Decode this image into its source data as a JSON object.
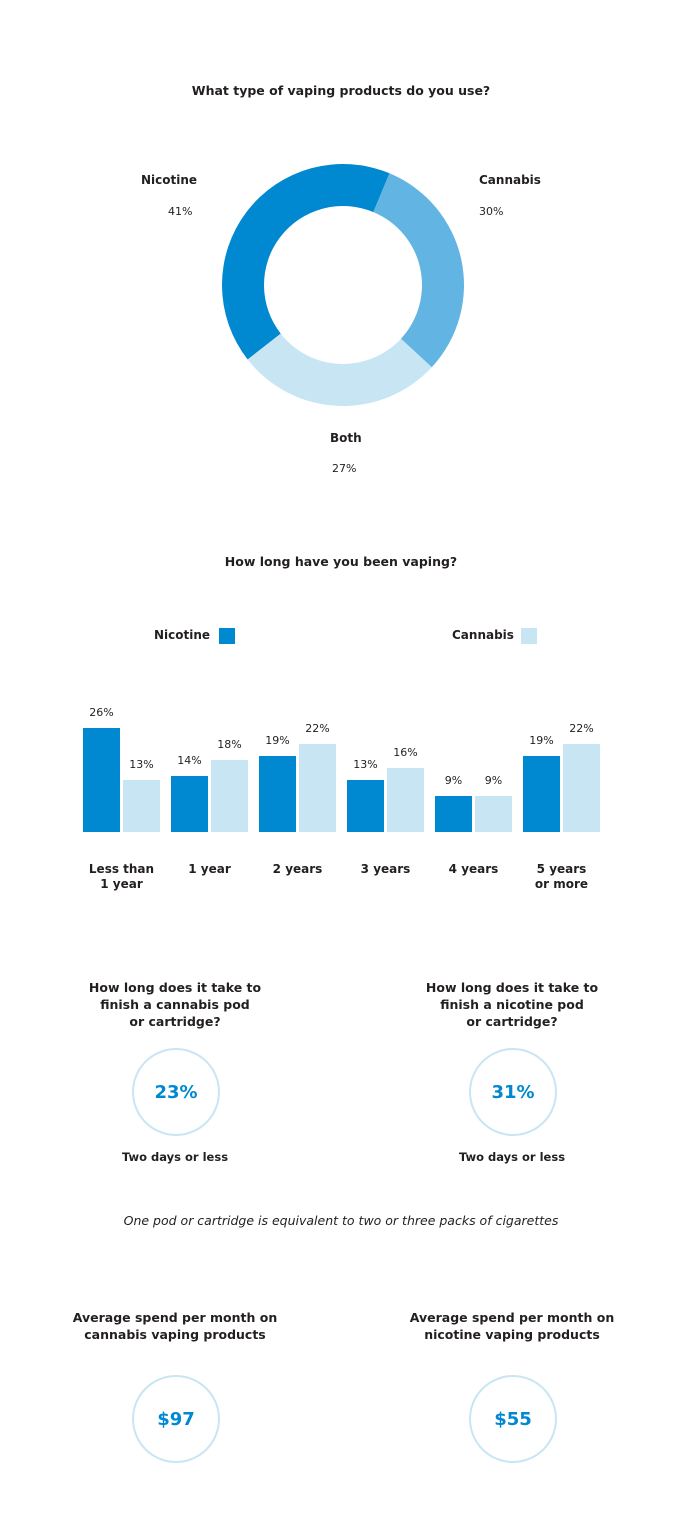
{
  "colors": {
    "nicotine": "#0088d1",
    "cannabis": "#62b5e2",
    "both": "#c8e5f4",
    "cannabis_bar": "#c8e5f4",
    "ring": "#c8e5f4",
    "text": "#231f20"
  },
  "chart_data": [
    {
      "type": "pie",
      "style": "donut",
      "title": "What type of vaping products do you use?",
      "slices": [
        {
          "label": "Nicotine",
          "value": 41,
          "display": "41%"
        },
        {
          "label": "Cannabis",
          "value": 30,
          "display": "30%"
        },
        {
          "label": "Both",
          "value": 27,
          "display": "27%"
        }
      ]
    },
    {
      "type": "bar",
      "title": "How long have you been vaping?",
      "categories": [
        "Less than 1 year",
        "1 year",
        "2 years",
        "3 years",
        "4 years",
        "5 years or more"
      ],
      "category_lines": [
        [
          "Less than",
          "1 year"
        ],
        [
          "1 year"
        ],
        [
          "2 years"
        ],
        [
          "3 years"
        ],
        [
          "4 years"
        ],
        [
          "5 years",
          "or more"
        ]
      ],
      "series": [
        {
          "name": "Nicotine",
          "values": [
            26,
            14,
            19,
            13,
            9,
            19
          ]
        },
        {
          "name": "Cannabis",
          "values": [
            13,
            18,
            22,
            16,
            9,
            22
          ]
        }
      ],
      "value_suffix": "%",
      "legend": "top",
      "grid": false,
      "ylim": [
        0,
        26
      ]
    }
  ],
  "pods": {
    "cannabis": {
      "title_lines": [
        "How long does it take to",
        "finish a cannabis pod",
        "or cartridge?"
      ],
      "value": "23%",
      "caption": "Two days or less"
    },
    "nicotine": {
      "title_lines": [
        "How long does it take to",
        "finish a nicotine pod",
        "or cartridge?"
      ],
      "value": "31%",
      "caption": "Two days or less"
    },
    "note": "One pod or cartridge is equivalent to two or three packs of cigarettes"
  },
  "spend": {
    "cannabis": {
      "title_lines": [
        "Average spend per month on",
        "cannabis vaping products"
      ],
      "value": "$97"
    },
    "nicotine": {
      "title_lines": [
        "Average spend per month on",
        "nicotine vaping products"
      ],
      "value": "$55"
    }
  }
}
